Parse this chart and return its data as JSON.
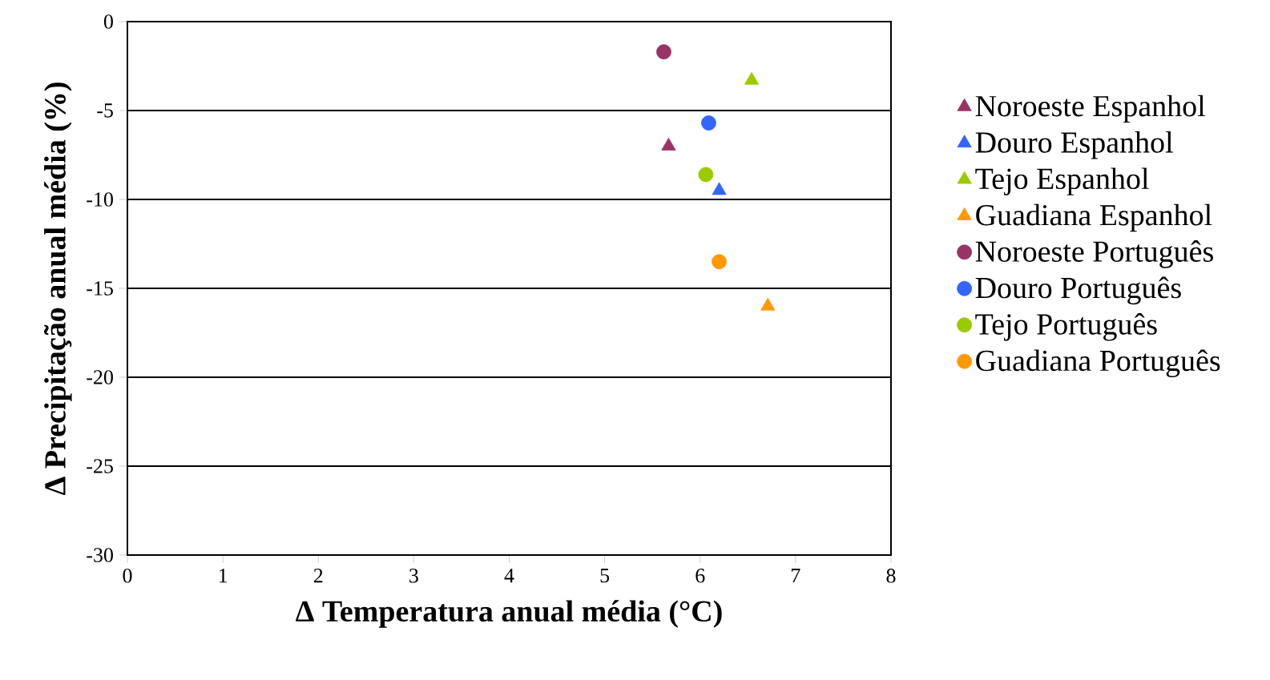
{
  "chart_data": {
    "type": "scatter",
    "xlabel": "Δ Temperatura anual média (°C)",
    "ylabel": "Δ Precipitação anual média (%)",
    "xlim": [
      0,
      8
    ],
    "xticks": [
      0,
      1,
      2,
      3,
      4,
      5,
      6,
      7,
      8
    ],
    "ylim": [
      -30,
      0
    ],
    "yticks": [
      -30,
      -25,
      -20,
      -15,
      -10,
      -5,
      0
    ],
    "grid": "y",
    "legend": "right",
    "series": [
      {
        "name": "Noroeste Espanhol",
        "color": "#993366",
        "marker": "triangle",
        "x": [
          5.67
        ],
        "values": [
          -7.0
        ]
      },
      {
        "name": "Douro Espanhol",
        "color": "#3366ff",
        "marker": "triangle",
        "x": [
          6.2
        ],
        "values": [
          -9.5
        ]
      },
      {
        "name": "Tejo Espanhol",
        "color": "#99cc00",
        "marker": "triangle",
        "x": [
          6.54
        ],
        "values": [
          -3.3
        ]
      },
      {
        "name": "Guadiana Espanhol",
        "color": "#ff9900",
        "marker": "triangle",
        "x": [
          6.71
        ],
        "values": [
          -16.0
        ]
      },
      {
        "name": "Noroeste Português",
        "color": "#993366",
        "marker": "circle",
        "x": [
          5.62
        ],
        "values": [
          -1.7
        ]
      },
      {
        "name": "Douro Português",
        "color": "#3366ff",
        "marker": "circle",
        "x": [
          6.09
        ],
        "values": [
          -5.7
        ]
      },
      {
        "name": "Tejo Português",
        "color": "#99cc00",
        "marker": "circle",
        "x": [
          6.06
        ],
        "values": [
          -8.6
        ]
      },
      {
        "name": "Guadiana Português",
        "color": "#ff9900",
        "marker": "circle",
        "x": [
          6.2
        ],
        "values": [
          -13.5
        ]
      }
    ]
  }
}
